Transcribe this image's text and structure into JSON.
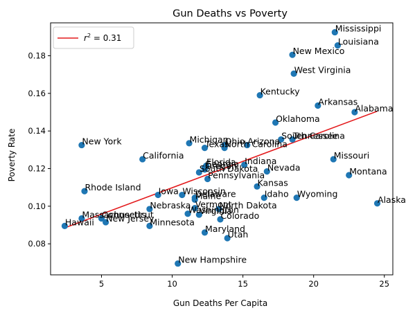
{
  "chart_data": {
    "type": "scatter",
    "title": "Gun Deaths vs Poverty",
    "xlabel": "Gun Deaths Per Capita",
    "ylabel": "Poverty Rate",
    "xlim": [
      1.4,
      25.6
    ],
    "ylim": [
      0.0635,
      0.1975
    ],
    "xticks": [
      {
        "value": 5,
        "label": "5"
      },
      {
        "value": 10,
        "label": "10"
      },
      {
        "value": 15,
        "label": "15"
      },
      {
        "value": 20,
        "label": "20"
      },
      {
        "value": 25,
        "label": "25"
      }
    ],
    "yticks": [
      {
        "value": 0.08,
        "label": "0.08"
      },
      {
        "value": 0.1,
        "label": "0.10"
      },
      {
        "value": 0.12,
        "label": "0.12"
      },
      {
        "value": 0.14,
        "label": "0.14"
      },
      {
        "value": 0.16,
        "label": "0.16"
      },
      {
        "value": 0.18,
        "label": "0.18"
      }
    ],
    "grid": false,
    "legend_position": "upper-left",
    "colors": {
      "points": "#1f77b4",
      "fit_line": "#e31a1c"
    },
    "fit_line": {
      "label_prefix": "r",
      "label_exponent": "2",
      "label_suffix": " = 0.31",
      "x": [
        2.4,
        24.5
      ],
      "y": [
        0.0885,
        0.1505
      ]
    },
    "points": [
      {
        "label": "Mississippi",
        "x": 21.5,
        "y": 0.1925
      },
      {
        "label": "Louisiana",
        "x": 21.7,
        "y": 0.1855
      },
      {
        "label": "New Mexico",
        "x": 18.5,
        "y": 0.1805
      },
      {
        "label": "West Virginia",
        "x": 18.6,
        "y": 0.1705
      },
      {
        "label": "Kentucky",
        "x": 16.2,
        "y": 0.159
      },
      {
        "label": "Arkansas",
        "x": 20.3,
        "y": 0.1535
      },
      {
        "label": "Alabama",
        "x": 22.9,
        "y": 0.15
      },
      {
        "label": "Oklahoma",
        "x": 17.3,
        "y": 0.1445
      },
      {
        "label": "South Carolina",
        "x": 17.7,
        "y": 0.1355
      },
      {
        "label": "Tennessee",
        "x": 18.5,
        "y": 0.1355
      },
      {
        "label": "New York",
        "x": 3.6,
        "y": 0.1325
      },
      {
        "label": "Michigan",
        "x": 11.2,
        "y": 0.1335
      },
      {
        "label": "Texas",
        "x": 12.3,
        "y": 0.131
      },
      {
        "label": "Ohio",
        "x": 13.7,
        "y": 0.1325
      },
      {
        "label": "Arizona",
        "x": 15.3,
        "y": 0.1325
      },
      {
        "label": "North Carolina",
        "x": 13.7,
        "y": 0.131
      },
      {
        "label": "Missouri",
        "x": 21.4,
        "y": 0.125
      },
      {
        "label": "California",
        "x": 7.9,
        "y": 0.125
      },
      {
        "label": "Florida",
        "x": 12.4,
        "y": 0.1215
      },
      {
        "label": "Indiana",
        "x": 15.1,
        "y": 0.122
      },
      {
        "label": "Georgia",
        "x": 12.3,
        "y": 0.1205
      },
      {
        "label": "Oregon",
        "x": 12.3,
        "y": 0.1195
      },
      {
        "label": "Nevada",
        "x": 16.7,
        "y": 0.1185
      },
      {
        "label": "South Dakota",
        "x": 11.9,
        "y": 0.118
      },
      {
        "label": "Montana",
        "x": 22.5,
        "y": 0.1165
      },
      {
        "label": "Pennsylvania",
        "x": 12.5,
        "y": 0.1145
      },
      {
        "label": "Kansas",
        "x": 16.0,
        "y": 0.1105
      },
      {
        "label": "Rhode Island",
        "x": 3.8,
        "y": 0.108
      },
      {
        "label": "Iowa",
        "x": 9.0,
        "y": 0.106
      },
      {
        "label": "Wisconsin",
        "x": 10.7,
        "y": 0.106
      },
      {
        "label": "Delaware",
        "x": 11.6,
        "y": 0.1045
      },
      {
        "label": "Idaho",
        "x": 16.5,
        "y": 0.1045
      },
      {
        "label": "Wyoming",
        "x": 18.8,
        "y": 0.1045
      },
      {
        "label": "Maine",
        "x": 11.6,
        "y": 0.1035
      },
      {
        "label": "Alaska",
        "x": 24.5,
        "y": 0.1015
      },
      {
        "label": "Vermont",
        "x": 11.6,
        "y": 0.099
      },
      {
        "label": "North Dakota",
        "x": 13.3,
        "y": 0.0985
      },
      {
        "label": "Nebraska",
        "x": 8.4,
        "y": 0.0985
      },
      {
        "label": "Washington",
        "x": 11.1,
        "y": 0.096
      },
      {
        "label": "Virginia",
        "x": 11.9,
        "y": 0.0955
      },
      {
        "label": "Colorado",
        "x": 13.4,
        "y": 0.093
      },
      {
        "label": "Massachusetts",
        "x": 3.6,
        "y": 0.0935
      },
      {
        "label": "Connecticut",
        "x": 5.0,
        "y": 0.0935
      },
      {
        "label": "New Jersey",
        "x": 5.3,
        "y": 0.0915
      },
      {
        "label": "Minnesota",
        "x": 8.4,
        "y": 0.0895
      },
      {
        "label": "Hawaii",
        "x": 2.4,
        "y": 0.0895
      },
      {
        "label": "Maryland",
        "x": 12.3,
        "y": 0.086
      },
      {
        "label": "Utah",
        "x": 13.9,
        "y": 0.083
      },
      {
        "label": "New Hampshire",
        "x": 10.4,
        "y": 0.0695
      }
    ]
  }
}
